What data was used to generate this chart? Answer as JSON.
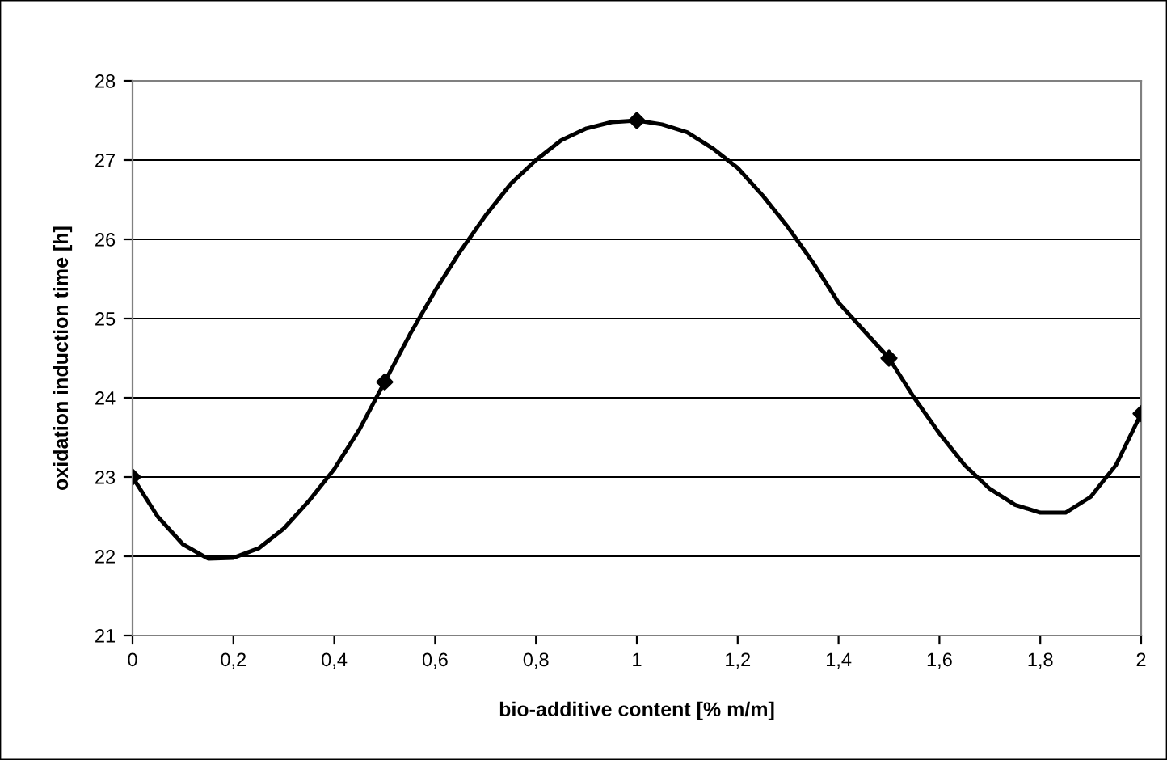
{
  "chart_data": {
    "type": "line",
    "xlabel": "bio-additive content [% m/m]",
    "ylabel": "oxidation induction time [h]",
    "xlim": [
      0,
      2
    ],
    "ylim": [
      21,
      28
    ],
    "xticks": [
      0,
      {
        "value": 0.2,
        "label": "0,2"
      },
      {
        "value": 0.4,
        "label": "0,4"
      },
      {
        "value": 0.6,
        "label": "0,6"
      },
      {
        "value": 0.8,
        "label": "0,8"
      },
      1,
      {
        "value": 1.2,
        "label": "1,2"
      },
      {
        "value": 1.4,
        "label": "1,4"
      },
      {
        "value": 1.6,
        "label": "1,6"
      },
      {
        "value": 1.8,
        "label": "1,8"
      },
      2
    ],
    "yticks": [
      21,
      22,
      23,
      24,
      25,
      26,
      27,
      28
    ],
    "grid": "y",
    "series": [
      {
        "color": "#000000",
        "marker": "none",
        "line_style": "solid",
        "x": [
          0,
          0.05,
          0.1,
          0.15,
          0.2,
          0.25,
          0.3,
          0.35,
          0.4,
          0.45,
          0.5,
          0.55,
          0.6,
          0.65,
          0.7,
          0.75,
          0.8,
          0.85,
          0.9,
          0.95,
          1.0,
          1.05,
          1.1,
          1.15,
          1.2,
          1.25,
          1.3,
          1.35,
          1.4,
          1.45,
          1.5,
          1.55,
          1.6,
          1.65,
          1.7,
          1.75,
          1.8,
          1.85,
          1.9,
          1.95,
          2.0
        ],
        "values": [
          23,
          22.5,
          22.15,
          21.97,
          21.98,
          22.1,
          22.35,
          22.7,
          23.1,
          23.6,
          24.2,
          24.8,
          25.35,
          25.85,
          26.3,
          26.7,
          27.0,
          27.25,
          27.4,
          27.48,
          27.5,
          27.45,
          27.35,
          27.15,
          26.9,
          26.55,
          26.15,
          25.7,
          25.2,
          24.85,
          24.5,
          24.0,
          23.55,
          23.15,
          22.85,
          22.65,
          22.55,
          22.55,
          22.75,
          23.15,
          23.8
        ]
      },
      {
        "type": "scatter",
        "color": "#000000",
        "marker": "diamond",
        "x": [
          0,
          0.5,
          1,
          1.5,
          2
        ],
        "values": [
          23,
          24.2,
          27.5,
          24.5,
          23.8
        ]
      }
    ]
  }
}
